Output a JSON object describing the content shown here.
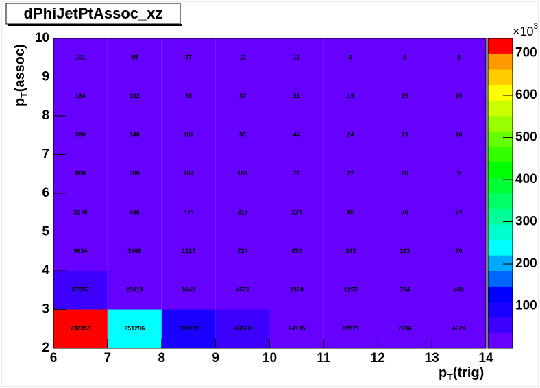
{
  "chart_data": {
    "type": "heatmap",
    "title": "dPhiJetPtAssoc_xz",
    "x_label": {
      "main": "p",
      "sub": "T",
      "rest": "(trig)"
    },
    "y_label": {
      "main": "p",
      "sub": "T",
      "rest": "(assoc)"
    },
    "x_edges": [
      6,
      7,
      8,
      9,
      10,
      11,
      12,
      13,
      14
    ],
    "y_edges": [
      2,
      3,
      4,
      5,
      6,
      7,
      8,
      9,
      10
    ],
    "xlim": [
      6,
      14
    ],
    "ylim": [
      2,
      10
    ],
    "xticks": [
      6,
      7,
      8,
      9,
      10,
      11,
      12,
      13,
      14
    ],
    "yticks": [
      2,
      3,
      4,
      5,
      6,
      7,
      8,
      9,
      10
    ],
    "z": [
      [
        732350,
        251296,
        101932,
        46528,
        24195,
        12821,
        7706,
        4624
      ],
      [
        67057,
        23619,
        9648,
        4572,
        2370,
        1255,
        794,
        480
      ],
      [
        9634,
        3468,
        1523,
        724,
        430,
        243,
        163,
        70
      ],
      [
        2278,
        935,
        474,
        218,
        134,
        80,
        70,
        34
      ],
      [
        868,
        380,
        164,
        101,
        72,
        22,
        26,
        9
      ],
      [
        380,
        148,
        102,
        55,
        44,
        24,
        13,
        16
      ],
      [
        164,
        102,
        38,
        37,
        21,
        19,
        15,
        10
      ],
      [
        101,
        55,
        37,
        12,
        13,
        6,
        6,
        3
      ]
    ],
    "zlim": [
      0,
      735000
    ],
    "zticks": [
      {
        "value": 100000,
        "label": "100"
      },
      {
        "value": 200000,
        "label": "200"
      },
      {
        "value": 300000,
        "label": "300"
      },
      {
        "value": 400000,
        "label": "400"
      },
      {
        "value": 500000,
        "label": "500"
      },
      {
        "value": 600000,
        "label": "600"
      },
      {
        "value": 700000,
        "label": "700"
      }
    ],
    "z_multiplier": {
      "base": "×10",
      "exp": "3"
    },
    "palette": [
      "#6600ff",
      "#3d00ff",
      "#1a00ff",
      "#0000ff",
      "#0066ff",
      "#00aaff",
      "#00ffff",
      "#00ffcc",
      "#00ff99",
      "#00ff66",
      "#00ff33",
      "#00ff00",
      "#33ff00",
      "#66ff00",
      "#99ff00",
      "#ccff00",
      "#ffff00",
      "#ffcc00",
      "#ff9900",
      "#ff0000"
    ]
  }
}
